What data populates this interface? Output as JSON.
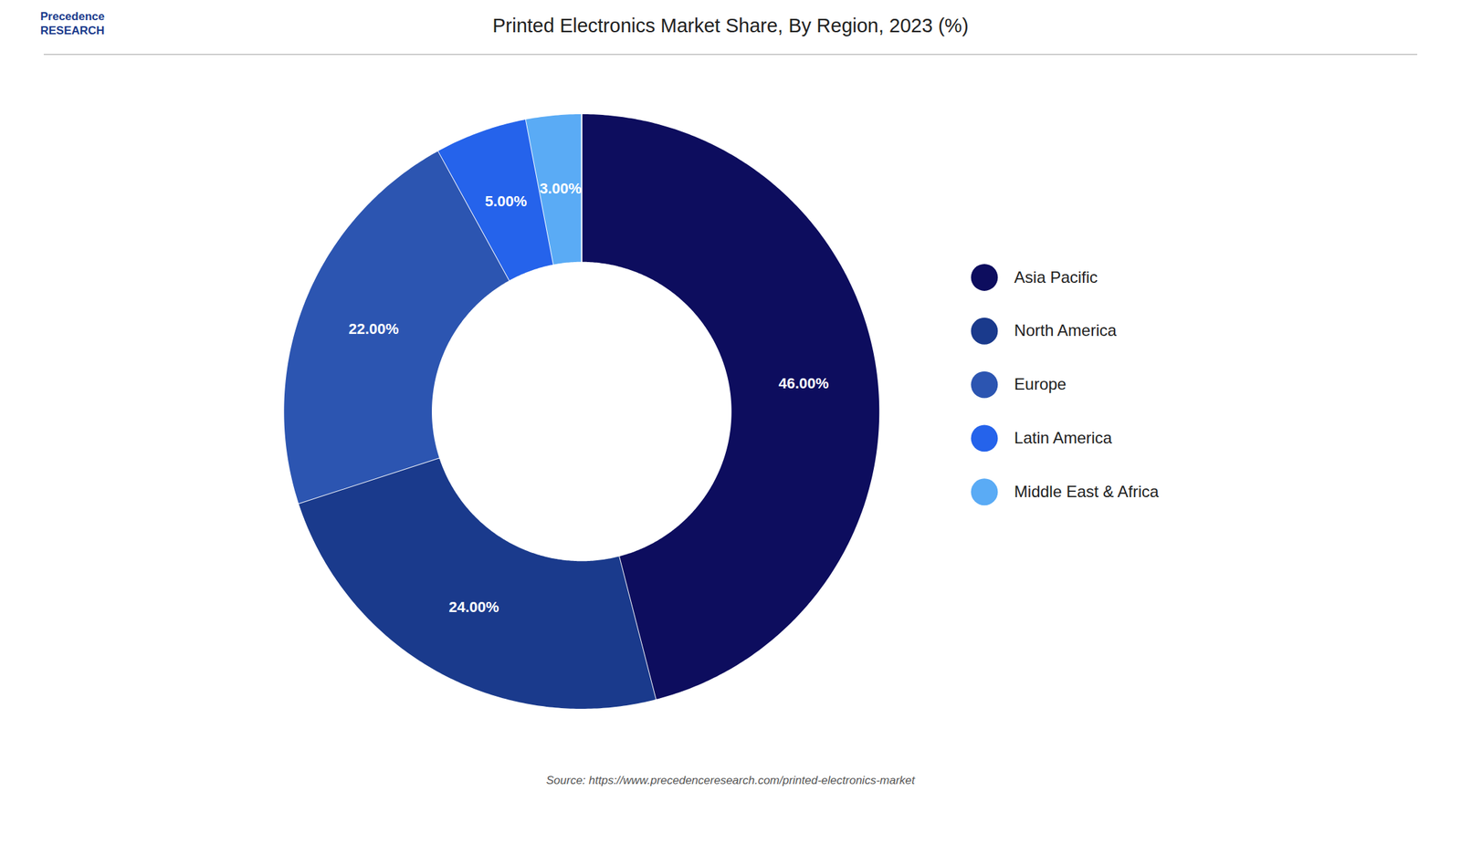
{
  "chart_data": {
    "type": "pie",
    "title": "Printed Electronics Market Share, By Region, 2023 (%)",
    "categories": [
      "Asia Pacific",
      "North America",
      "Europe",
      "Latin America",
      "Middle East & Africa"
    ],
    "values": [
      46,
      24,
      22,
      5,
      3
    ],
    "value_labels": [
      "46.00%",
      "24.00%",
      "22.00%",
      "5.00%",
      "3.00%"
    ],
    "colors": [
      "#0d0d5e",
      "#1a3a8c",
      "#2c55b1",
      "#2563eb",
      "#5aabf5"
    ],
    "data_labels": true,
    "legend": "right",
    "annotations": [
      "Precedence\nRESEARCH",
      "Source: https://www.precedenceresearch.com/printed-electronics-market"
    ]
  }
}
